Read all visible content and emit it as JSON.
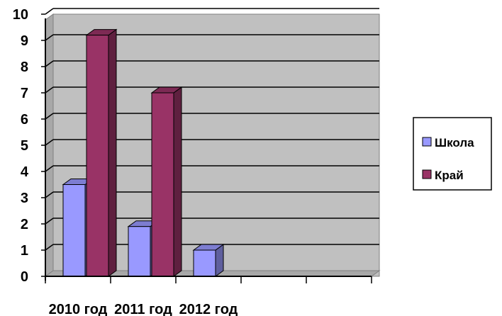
{
  "chart_data": {
    "type": "bar",
    "title": "",
    "xlabel": "",
    "ylabel": "",
    "categories": [
      "2010 год",
      "2011 год",
      "2012 год",
      "",
      ""
    ],
    "series": [
      {
        "name": "Школа",
        "values": [
          3.5,
          1.9,
          1.0,
          null,
          null
        ],
        "color": "#9999ff"
      },
      {
        "name": "Край",
        "values": [
          9.2,
          7.0,
          null,
          null,
          null
        ],
        "color": "#993366"
      }
    ],
    "ylim": [
      0,
      10
    ],
    "yticks": [
      "0",
      "1",
      "2",
      "3",
      "4",
      "5",
      "6",
      "7",
      "8",
      "9",
      "10"
    ],
    "grid": true,
    "legend": "right",
    "plot_background": "#c0c0c0"
  }
}
